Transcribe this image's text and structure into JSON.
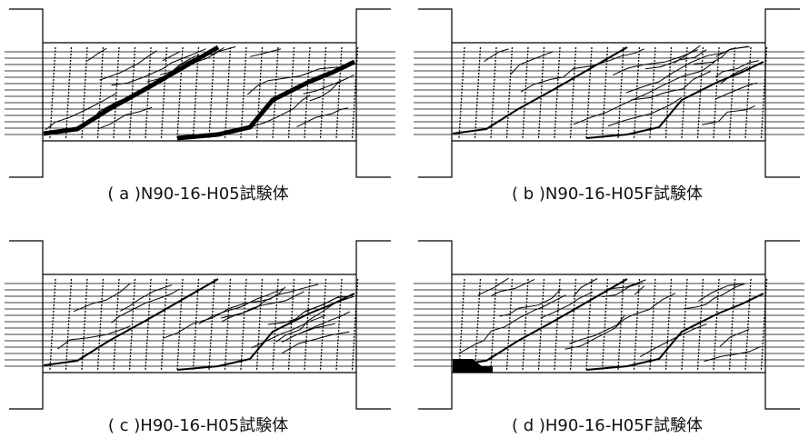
{
  "panels": [
    {
      "caption": "( a )N90-16-H05試験体"
    },
    {
      "caption": "( b )N90-16-H05F試験体"
    },
    {
      "caption": "( c )H90-16-H05試験体"
    },
    {
      "caption": "( d )H90-16-H05F試験体"
    }
  ]
}
